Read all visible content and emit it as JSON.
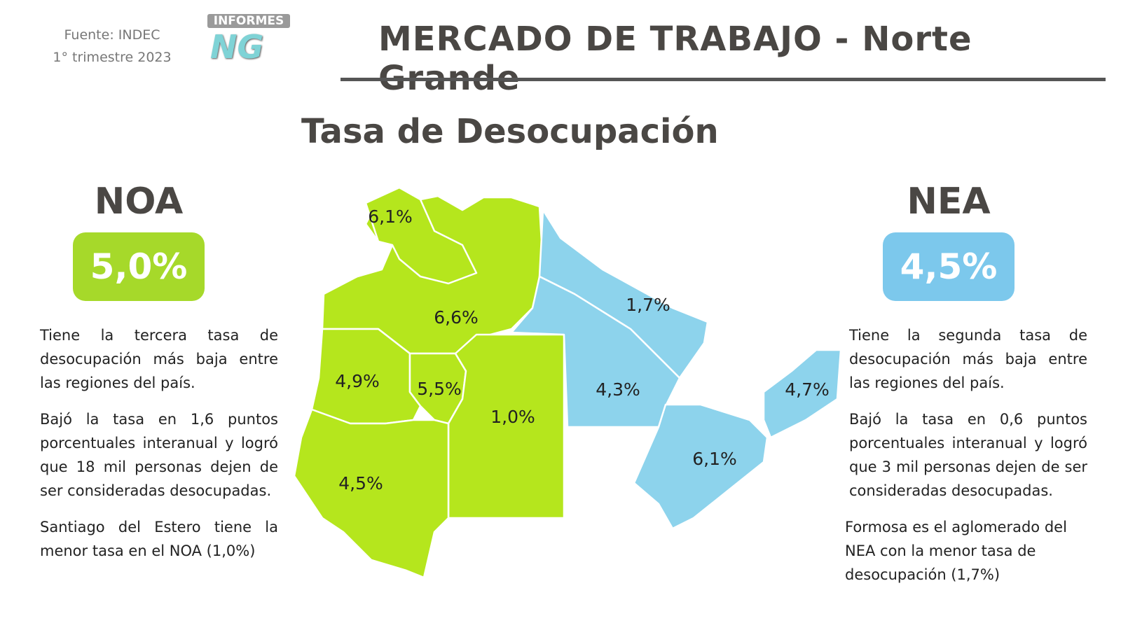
{
  "header": {
    "source": "Fuente: INDEC",
    "period": "1° trimestre 2023",
    "logo_top": "INFORMES",
    "logo_main": "NG",
    "title": "MERCADO DE TRABAJO - Norte Grande"
  },
  "subtitle": "Tasa de Desocupación",
  "noa": {
    "name": "NOA",
    "rate": "5,0%",
    "paragraphs": [
      "Tiene la tercera tasa de desocupación más baja entre las regiones del país.",
      "Bajó la tasa en 1,6 puntos porcentuales interanual y logró que 18 mil personas dejen de ser consideradas desocupadas.",
      "Santiago del Estero tiene la menor tasa en el NOA (1,0%)"
    ]
  },
  "nea": {
    "name": "NEA",
    "rate": "4,5%",
    "paragraphs": [
      "Tiene la segunda tasa de desocupación más baja entre las regiones del país.",
      "Bajó la tasa en 0,6 puntos porcentuales interanual y logró que 3 mil personas dejen de ser consideradas desocupadas.",
      "Formosa es el aglomerado del NEA con la menor tasa de desocupación (1,7%)"
    ]
  },
  "map": {
    "labels": [
      "6,1%",
      "6,6%",
      "4,9%",
      "5,5%",
      "1,0%",
      "4,5%",
      "1,7%",
      "4,3%",
      "6,1%",
      "4,7%"
    ]
  }
}
